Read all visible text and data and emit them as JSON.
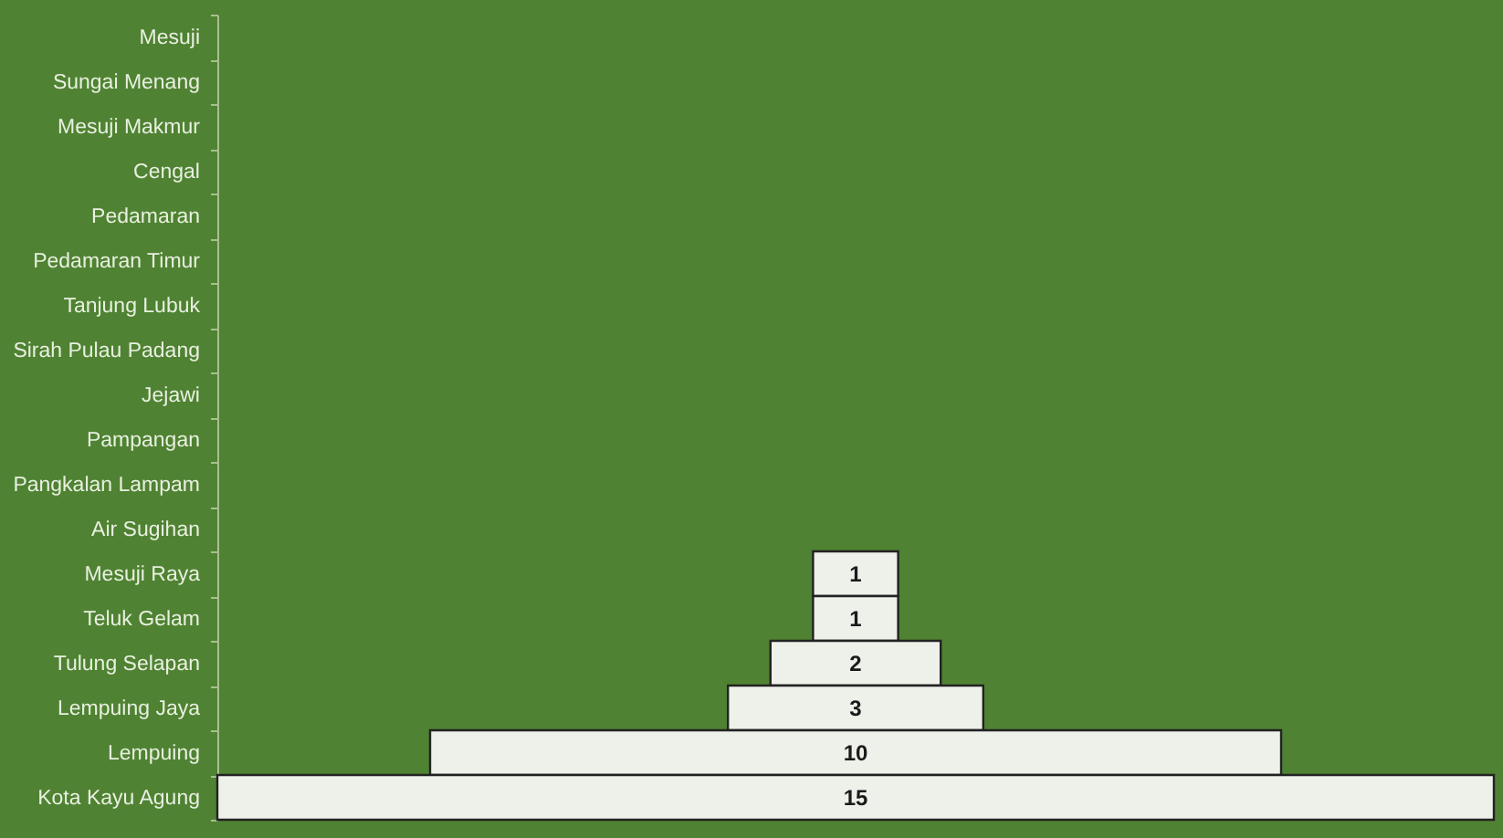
{
  "chart_data": {
    "type": "other",
    "categories": [
      "Mesuji",
      "Sungai Menang",
      "Mesuji Makmur",
      "Cengal",
      "Pedamaran",
      "Pedamaran Timur",
      "Tanjung Lubuk",
      "Sirah Pulau Padang",
      "Jejawi",
      "Pampangan",
      "Pangkalan Lampam",
      "Air Sugihan",
      "Mesuji Raya",
      "Teluk Gelam",
      "Tulung Selapan",
      "Lempuing Jaya",
      "Lempuing",
      "Kota Kayu Agung"
    ],
    "values": [
      null,
      null,
      null,
      null,
      null,
      null,
      null,
      null,
      null,
      null,
      null,
      null,
      1,
      1,
      2,
      3,
      10,
      15
    ],
    "color": "#eef0ea",
    "data_labels": true
  }
}
